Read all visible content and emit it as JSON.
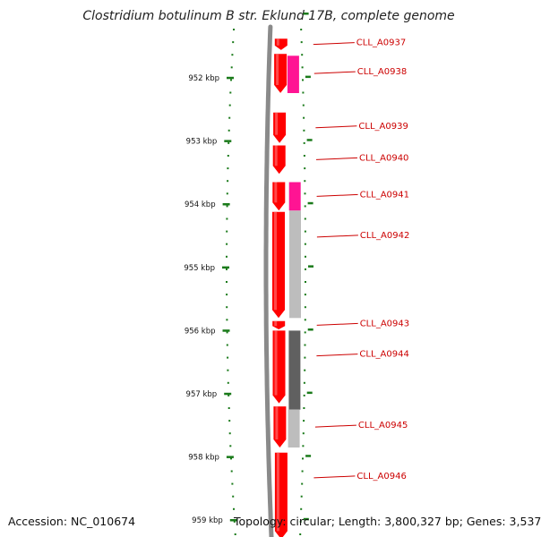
{
  "title": "Clostridium botulinum B str. Eklund 17B, complete genome",
  "footer": {
    "accession": "Accession: NC_010674",
    "topology": "Topology: circular; Length: 3,800,327 bp; Genes: 3,537"
  },
  "colors": {
    "backbone": "#8a8a8a",
    "cds": "#ff0000",
    "hit_magenta": "#ff1493",
    "hit_light_gray": "#bdbdbd",
    "hit_dark_gray": "#606060",
    "tick_green": "#1a7a1a",
    "label_red": "#cc0000"
  },
  "scale_ticks": [
    {
      "label": "952 kbp",
      "kbp": 952
    },
    {
      "label": "953 kbp",
      "kbp": 953
    },
    {
      "label": "954 kbp",
      "kbp": 954
    },
    {
      "label": "955 kbp",
      "kbp": 955
    },
    {
      "label": "956 kbp",
      "kbp": 956
    },
    {
      "label": "957 kbp",
      "kbp": 957
    },
    {
      "label": "958 kbp",
      "kbp": 958
    },
    {
      "label": "959 kbp",
      "kbp": 959
    }
  ],
  "genes": [
    {
      "name": "CLL_A0937",
      "start_kbp": 951.38,
      "end_kbp": 951.56
    },
    {
      "name": "CLL_A0938",
      "start_kbp": 951.62,
      "end_kbp": 952.24
    },
    {
      "name": "CLL_A0939",
      "start_kbp": 952.55,
      "end_kbp": 953.03
    },
    {
      "name": "CLL_A0940",
      "start_kbp": 953.07,
      "end_kbp": 953.52
    },
    {
      "name": "CLL_A0941",
      "start_kbp": 953.65,
      "end_kbp": 954.1
    },
    {
      "name": "CLL_A0942",
      "start_kbp": 954.12,
      "end_kbp": 955.8
    },
    {
      "name": "CLL_A0943",
      "start_kbp": 955.85,
      "end_kbp": 955.98
    },
    {
      "name": "CLL_A0944",
      "start_kbp": 956.0,
      "end_kbp": 957.15
    },
    {
      "name": "CLL_A0945",
      "start_kbp": 957.2,
      "end_kbp": 957.85
    },
    {
      "name": "CLL_A0946",
      "start_kbp": 957.93,
      "end_kbp": 959.3
    }
  ],
  "hits": [
    {
      "start_kbp": 951.65,
      "end_kbp": 952.24,
      "color": "#ff1493"
    },
    {
      "start_kbp": 953.65,
      "end_kbp": 954.1,
      "color": "#ff1493"
    },
    {
      "start_kbp": 954.1,
      "end_kbp": 955.8,
      "color": "#bdbdbd"
    },
    {
      "start_kbp": 956.0,
      "end_kbp": 957.25,
      "color": "#606060"
    },
    {
      "start_kbp": 957.25,
      "end_kbp": 957.85,
      "color": "#bdbdbd"
    }
  ]
}
